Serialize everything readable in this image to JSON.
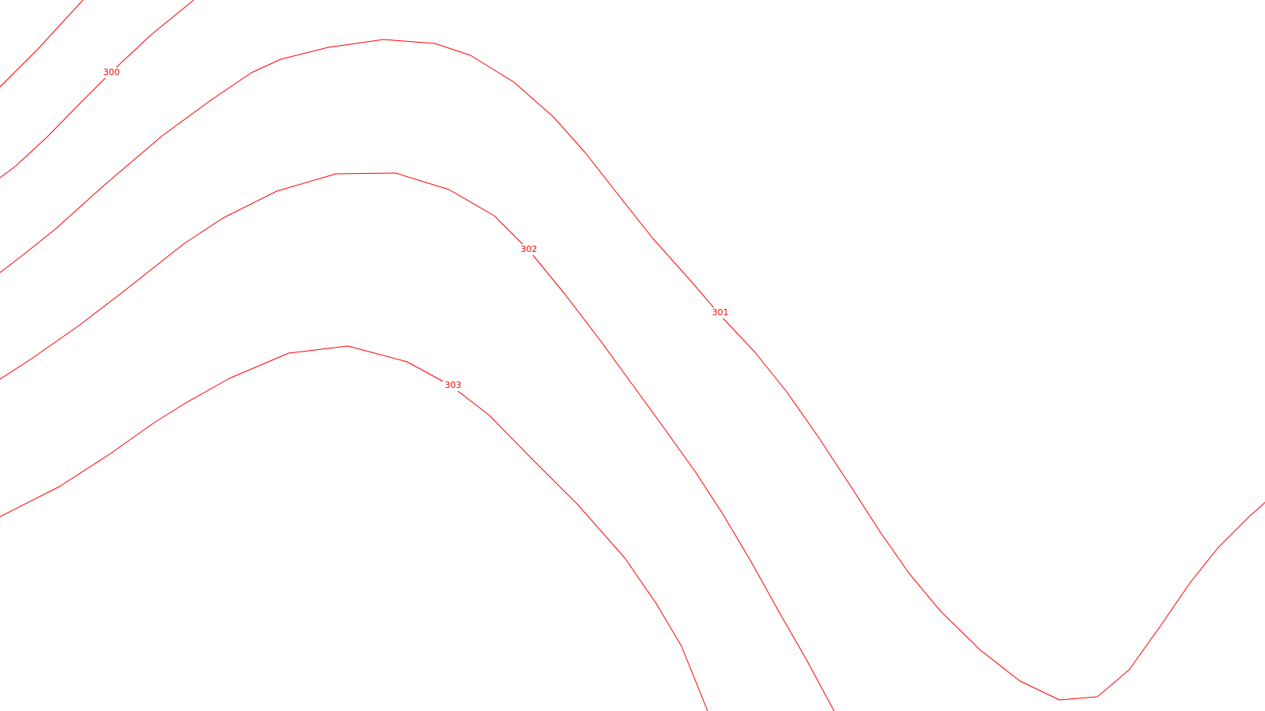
{
  "map": {
    "line_color": "#ff0000",
    "background_color": "#ffffff",
    "contours": [
      {
        "id": "contour-300-a",
        "label": null
      },
      {
        "id": "contour-300-b",
        "label": "300"
      },
      {
        "id": "contour-301",
        "label": "301"
      },
      {
        "id": "contour-302",
        "label": "302"
      },
      {
        "id": "contour-302-b",
        "label": null
      },
      {
        "id": "contour-303",
        "label": "303"
      }
    ],
    "labels": {
      "c300": "300",
      "c301": "301",
      "c302": "302",
      "c303": "303"
    }
  }
}
